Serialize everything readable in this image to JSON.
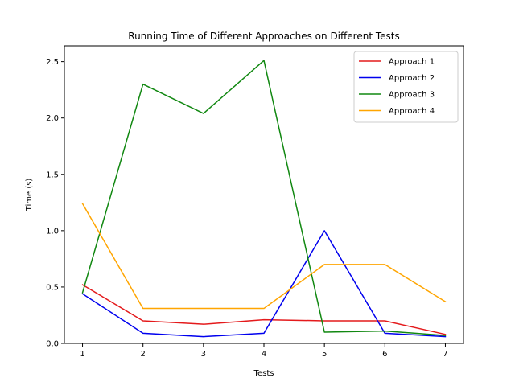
{
  "chart_data": {
    "type": "line",
    "title": "Running Time of Different Approaches on Different Tests",
    "xlabel": "Tests",
    "ylabel": "Time (s)",
    "x": [
      1,
      2,
      3,
      4,
      5,
      6,
      7
    ],
    "xticks": [
      1,
      2,
      3,
      4,
      5,
      6,
      7
    ],
    "yticks": [
      0.0,
      0.5,
      1.0,
      1.5,
      2.0,
      2.5
    ],
    "ytick_labels": [
      "0.0",
      "0.5",
      "1.0",
      "1.5",
      "2.0",
      "2.5"
    ],
    "xlim": [
      0.7,
      7.3
    ],
    "ylim": [
      0,
      2.64
    ],
    "grid": false,
    "legend_position": "top-right",
    "series": [
      {
        "name": "Approach 1",
        "color": "#e41a1c",
        "values": [
          0.52,
          0.2,
          0.17,
          0.21,
          0.2,
          0.2,
          0.08
        ]
      },
      {
        "name": "Approach 2",
        "color": "#0000ee",
        "values": [
          0.44,
          0.09,
          0.06,
          0.09,
          1.0,
          0.09,
          0.06
        ]
      },
      {
        "name": "Approach 3",
        "color": "#118811",
        "values": [
          0.45,
          2.3,
          2.04,
          2.51,
          0.1,
          0.11,
          0.07
        ]
      },
      {
        "name": "Approach 4",
        "color": "#ffa500",
        "values": [
          1.24,
          0.31,
          0.31,
          0.31,
          0.7,
          0.7,
          0.37
        ]
      }
    ]
  }
}
